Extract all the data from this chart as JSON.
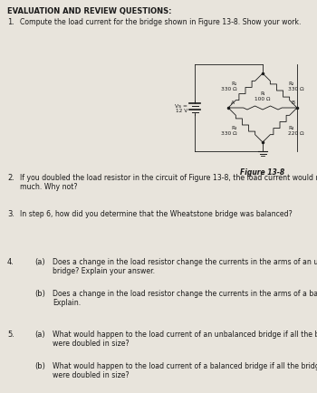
{
  "bg_color": "#e8e4dc",
  "title": "EVALUATION AND REVIEW QUESTIONS:",
  "q1_text": "Compute the load current for the bridge shown in Figure 13-8. Show your work.",
  "q2_num": "2.",
  "q2_text": "If you doubled the load resistor in the circuit of Figure 13-8, the load current would not be half as\nmuch. Why not?",
  "q3_num": "3.",
  "q3_text": "In step 6, how did you determine that the Wheatstone bridge was balanced?",
  "q4_num": "4.",
  "q4a_sub": "(a)",
  "q4a_text": "Does a change in the load resistor change the currents in the arms of an unbalanced\nbridge? Explain your answer.",
  "q4b_sub": "(b)",
  "q4b_text": "Does a change in the load resistor change the currents in the arms of a balanced bridge?\nExplain.",
  "q5_num": "5.",
  "q5a_sub": "(a)",
  "q5a_text": "What would happen to the load current of an unbalanced bridge if all the bridge resistors\nwere doubled in size?",
  "q5b_sub": "(b)",
  "q5b_text": "What would happen to the load current of a balanced bridge if all the bridge resistors\nwere doubled in size?",
  "fig_label": "Figure 13-8",
  "vs_label": "Vs =\n12 V",
  "r1_label": "R₁\n330 Ω",
  "r2_label": "R₂\n330 Ω",
  "r3_label": "R₃\n330 Ω",
  "r4_label": "R₄\n220 Ω",
  "rl_label": "Rₗ\n100 Ω",
  "node_a": "A",
  "node_b": "B",
  "title_fs": 6.0,
  "q_num_fs": 6.0,
  "q_text_fs": 5.6,
  "circuit_fs": 4.2,
  "fig_label_fs": 5.5
}
